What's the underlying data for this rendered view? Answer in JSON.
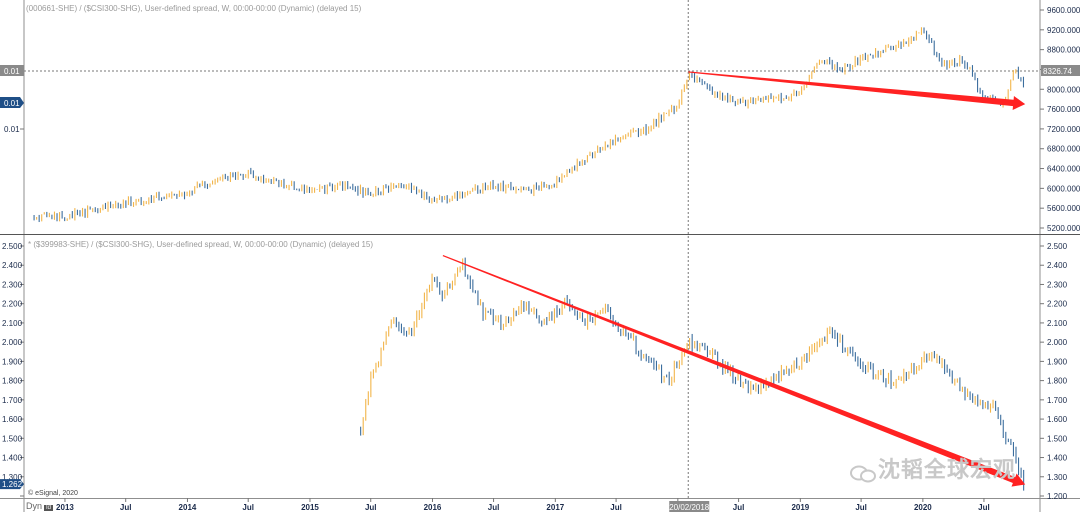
{
  "colors": {
    "up": "#f2b54a",
    "down": "#3c6e9e",
    "trend": "#ff2222",
    "grid": "#b8b8b8",
    "axis_text": "#1a2a4a",
    "marker_dark": "#1f4f87",
    "marker_gray": "#8a8a8a"
  },
  "top_panel": {
    "header": "(000661-SHE) / ($CSI300-SHG), User-defined spread, W, 00:00-00:00 (Dynamic) (delayed 15)",
    "left_labels": [
      "0.01",
      "0.01",
      "0.01"
    ],
    "right_ticks": [
      "9600.000",
      "9200.000",
      "8800.000",
      "8400.000",
      "8000.000",
      "7600.000",
      "7200.000",
      "6800.000",
      "6400.000",
      "6000.000",
      "5600.000",
      "5200.000"
    ],
    "right_marker": "8326.74"
  },
  "bottom_panel": {
    "header": "* ($399983-SHE) / ($CSI300-SHG), User-defined spread, W, 00:00-00:00 (Dynamic) (delayed 15)",
    "ticks": [
      "2.500",
      "2.400",
      "2.300",
      "2.200",
      "2.100",
      "2.000",
      "1.900",
      "1.800",
      "1.700",
      "1.600",
      "1.500",
      "1.400",
      "1.300",
      "1.200"
    ],
    "marker": "1.262"
  },
  "x_axis": {
    "labels": [
      "2013",
      "Jul",
      "2014",
      "Jul",
      "2015",
      "Jul",
      "2016",
      "Jul",
      "2017",
      "Jul",
      "2018",
      "Jul",
      "2019",
      "Jul",
      "2020",
      "Jul"
    ],
    "crosshair_date": "20/02/2018"
  },
  "footer": {
    "copyright": "© eSignal, 2020",
    "dyn_label": "Dyn",
    "dyn_badge": "Id"
  },
  "watermark": "沈韬全球宏观",
  "chart_data": [
    {
      "type": "line",
      "title": "(000661-SHE) / ($CSI300-SHG), User-defined spread, W, 00:00-00:00 (Dynamic) (delayed 15)",
      "x": [
        "2012-10",
        "2013-01",
        "2013-07",
        "2014-01",
        "2014-04",
        "2014-07",
        "2014-10",
        "2015-01",
        "2015-04",
        "2015-07",
        "2015-10",
        "2016-01",
        "2016-04",
        "2016-07",
        "2016-10",
        "2017-01",
        "2017-04",
        "2017-07",
        "2017-10",
        "2018-01",
        "2018-02",
        "2018-04",
        "2018-07",
        "2018-10",
        "2019-01",
        "2019-03",
        "2019-05",
        "2019-08",
        "2019-11",
        "2020-01",
        "2020-03",
        "2020-05",
        "2020-07",
        "2020-09",
        "2020-10",
        "2020-11"
      ],
      "y": [
        5400,
        5450,
        5700,
        5900,
        6200,
        6300,
        6100,
        5950,
        6050,
        5900,
        6100,
        5750,
        5900,
        6050,
        5950,
        6100,
        6600,
        7000,
        7200,
        7700,
        8300,
        8000,
        7700,
        7800,
        7900,
        8600,
        8400,
        8700,
        8900,
        9200,
        8500,
        8600,
        7800,
        7700,
        8400,
        8000
      ],
      "ylim": [
        5200,
        9600
      ],
      "trendline": [
        [
          "2018-02",
          8350
        ],
        [
          "2020-11",
          7700
        ]
      ]
    },
    {
      "type": "line",
      "title": "* ($399983-SHE) / ($CSI300-SHG), User-defined spread, W, 00:00-00:00 (Dynamic) (delayed 15)",
      "x": [
        "2015-06",
        "2015-07",
        "2015-09",
        "2015-11",
        "2016-01",
        "2016-02",
        "2016-04",
        "2016-06",
        "2016-08",
        "2016-10",
        "2016-12",
        "2017-02",
        "2017-04",
        "2017-06",
        "2017-08",
        "2017-10",
        "2017-12",
        "2018-02",
        "2018-04",
        "2018-06",
        "2018-08",
        "2018-10",
        "2018-12",
        "2019-02",
        "2019-04",
        "2019-06",
        "2019-08",
        "2019-10",
        "2019-12",
        "2020-02",
        "2020-04",
        "2020-06",
        "2020-08",
        "2020-10",
        "2020-11"
      ],
      "y": [
        1.56,
        1.8,
        2.1,
        2.05,
        2.35,
        2.25,
        2.4,
        2.15,
        2.1,
        2.2,
        2.1,
        2.2,
        2.1,
        2.15,
        2.05,
        1.9,
        1.8,
        2.0,
        1.95,
        1.85,
        1.75,
        1.8,
        1.85,
        1.95,
        2.05,
        1.95,
        1.85,
        1.8,
        1.85,
        1.95,
        1.8,
        1.7,
        1.65,
        1.4,
        1.25
      ],
      "ylim": [
        1.2,
        2.5
      ],
      "trendline": [
        [
          "2016-02",
          2.45
        ],
        [
          "2020-11",
          1.26
        ]
      ]
    }
  ]
}
